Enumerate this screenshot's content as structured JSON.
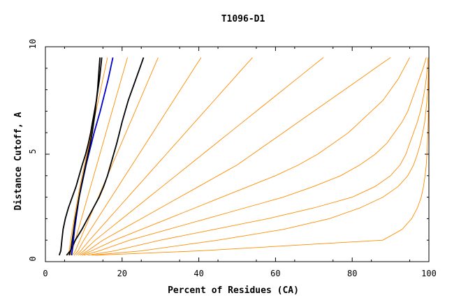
{
  "chart_data": {
    "type": "line",
    "title": "T1096-D1",
    "xlabel": "Percent of Residues (CA)",
    "ylabel": "Distance Cutoff, A",
    "xlim": [
      0,
      100
    ],
    "ylim": [
      0,
      10
    ],
    "x_ticks": [
      0,
      20,
      40,
      60,
      80,
      100
    ],
    "y_ticks": [
      0,
      5,
      10
    ],
    "grid": false,
    "colors": {
      "models": "#ff8c00",
      "highlight_black": "#000000",
      "highlight_blue": "#0000cc"
    },
    "y_levels": [
      0.3,
      0.5,
      1,
      1.5,
      2,
      2.5,
      3,
      3.5,
      4,
      4.5,
      5,
      5.5,
      6,
      6.5,
      7,
      7.5,
      8,
      8.5,
      9,
      9.5
    ],
    "series": [
      {
        "color": "#ff8c00",
        "x": [
          5.8,
          6.2,
          6.6,
          7.0,
          7.5,
          8.0,
          8.5,
          9.0,
          9.6,
          10.2,
          10.8,
          11.4,
          12.0,
          12.6,
          13.2,
          13.8,
          14.4,
          15.0,
          15.6,
          16.2
        ]
      },
      {
        "color": "#ff8c00",
        "x": [
          6.5,
          7.0,
          7.8,
          8.6,
          9.4,
          10.2,
          11.0,
          11.8,
          12.6,
          13.4,
          14.2,
          15.0,
          15.8,
          16.6,
          17.4,
          18.2,
          19.0,
          19.8,
          20.6,
          21.4
        ]
      },
      {
        "color": "#ff8c00",
        "x": [
          7.0,
          7.8,
          9.0,
          10.2,
          11.4,
          12.6,
          13.8,
          15.0,
          16.2,
          17.4,
          18.6,
          19.8,
          21.0,
          22.2,
          23.4,
          24.6,
          25.8,
          27.0,
          28.2,
          29.4
        ]
      },
      {
        "color": "#ff8c00",
        "x": [
          7.5,
          8.5,
          10.0,
          11.8,
          13.6,
          15.4,
          17.2,
          19.0,
          20.8,
          22.6,
          24.4,
          26.2,
          28.0,
          29.8,
          31.6,
          33.4,
          35.2,
          37.0,
          38.8,
          40.6
        ]
      },
      {
        "color": "#ff8c00",
        "x": [
          8.0,
          9.2,
          11.5,
          14.0,
          16.5,
          19.0,
          21.5,
          24.0,
          26.5,
          29.0,
          31.5,
          34.0,
          36.5,
          39.0,
          41.5,
          44.0,
          46.5,
          49.0,
          51.5,
          54.0
        ]
      },
      {
        "color": "#ff8c00",
        "x": [
          8.5,
          10.0,
          13.0,
          16.5,
          20.0,
          23.5,
          27.0,
          30.5,
          34.0,
          37.5,
          41.0,
          44.5,
          48.0,
          51.5,
          55.0,
          58.5,
          62.0,
          65.5,
          69.0,
          72.5
        ]
      },
      {
        "color": "#ff8c00",
        "x": [
          9.0,
          11.0,
          15.0,
          20.0,
          25.0,
          30.0,
          35.0,
          40.0,
          45.0,
          50.0,
          54.0,
          58.0,
          62.0,
          66.0,
          70.0,
          74.0,
          78.0,
          82.0,
          86.0,
          90.0
        ]
      },
      {
        "color": "#ff8c00",
        "x": [
          9.5,
          12.0,
          18.0,
          25.0,
          32.0,
          39.0,
          46.0,
          53.0,
          60.0,
          66.0,
          71.0,
          75.0,
          79.0,
          82.0,
          85.0,
          88.0,
          90.0,
          92.0,
          93.5,
          95.0
        ]
      },
      {
        "color": "#ff8c00",
        "x": [
          10.0,
          14.0,
          22.0,
          32.0,
          42.0,
          52.0,
          62.0,
          70.0,
          77.0,
          82.0,
          86.0,
          89.0,
          91.0,
          93.0,
          94.5,
          95.5,
          96.5,
          97.5,
          98.5,
          99.3
        ]
      },
      {
        "color": "#ff8c00",
        "x": [
          11.0,
          18.0,
          30.0,
          44.0,
          58.0,
          70.0,
          80.0,
          86.0,
          90.0,
          92.5,
          94.0,
          95.0,
          96.0,
          97.0,
          97.8,
          98.4,
          98.9,
          99.3,
          99.6,
          99.8
        ]
      },
      {
        "color": "#ff8c00",
        "x": [
          12.0,
          25.0,
          45.0,
          62.0,
          74.0,
          82.0,
          88.0,
          92.0,
          94.5,
          96.0,
          97.0,
          97.8,
          98.4,
          98.9,
          99.2,
          99.5,
          99.7,
          99.8,
          99.9,
          100.0
        ]
      },
      {
        "color": "#ff8c00",
        "x": [
          13.0,
          40.0,
          88.0,
          93.0,
          95.5,
          97.0,
          98.0,
          98.6,
          99.0,
          99.3,
          99.5,
          99.6,
          99.7,
          99.8,
          99.85,
          99.9,
          99.93,
          99.95,
          99.98,
          100.0
        ]
      },
      {
        "color": "#000000",
        "x": [
          3.6,
          4.0,
          4.3,
          4.6,
          5.2,
          6.0,
          7.0,
          8.0,
          8.8,
          9.6,
          10.5,
          11.2,
          11.8,
          12.3,
          12.8,
          13.3,
          13.7,
          14.1,
          14.4,
          14.7
        ]
      },
      {
        "color": "#000000",
        "x": [
          5.5,
          6.5,
          7.8,
          9.5,
          11.0,
          12.5,
          14.0,
          15.2,
          16.2,
          17.0,
          17.8,
          18.6,
          19.3,
          20.0,
          20.8,
          21.6,
          22.6,
          23.6,
          24.6,
          25.6
        ]
      },
      {
        "color": "#0000cc",
        "x": [
          6.8,
          7.0,
          7.3,
          7.6,
          8.0,
          8.4,
          8.8,
          9.4,
          10.0,
          10.6,
          11.3,
          12.0,
          12.7,
          13.5,
          14.3,
          15.0,
          15.7,
          16.4,
          17.0,
          17.6
        ]
      },
      {
        "color": "#000000",
        "x": [
          6.2,
          6.6,
          7.0,
          7.4,
          7.8,
          8.3,
          8.8,
          9.3,
          9.9,
          10.5,
          11.1,
          11.7,
          12.2,
          12.6,
          13.0,
          13.3,
          13.6,
          13.8,
          14.0,
          14.2
        ]
      }
    ]
  }
}
